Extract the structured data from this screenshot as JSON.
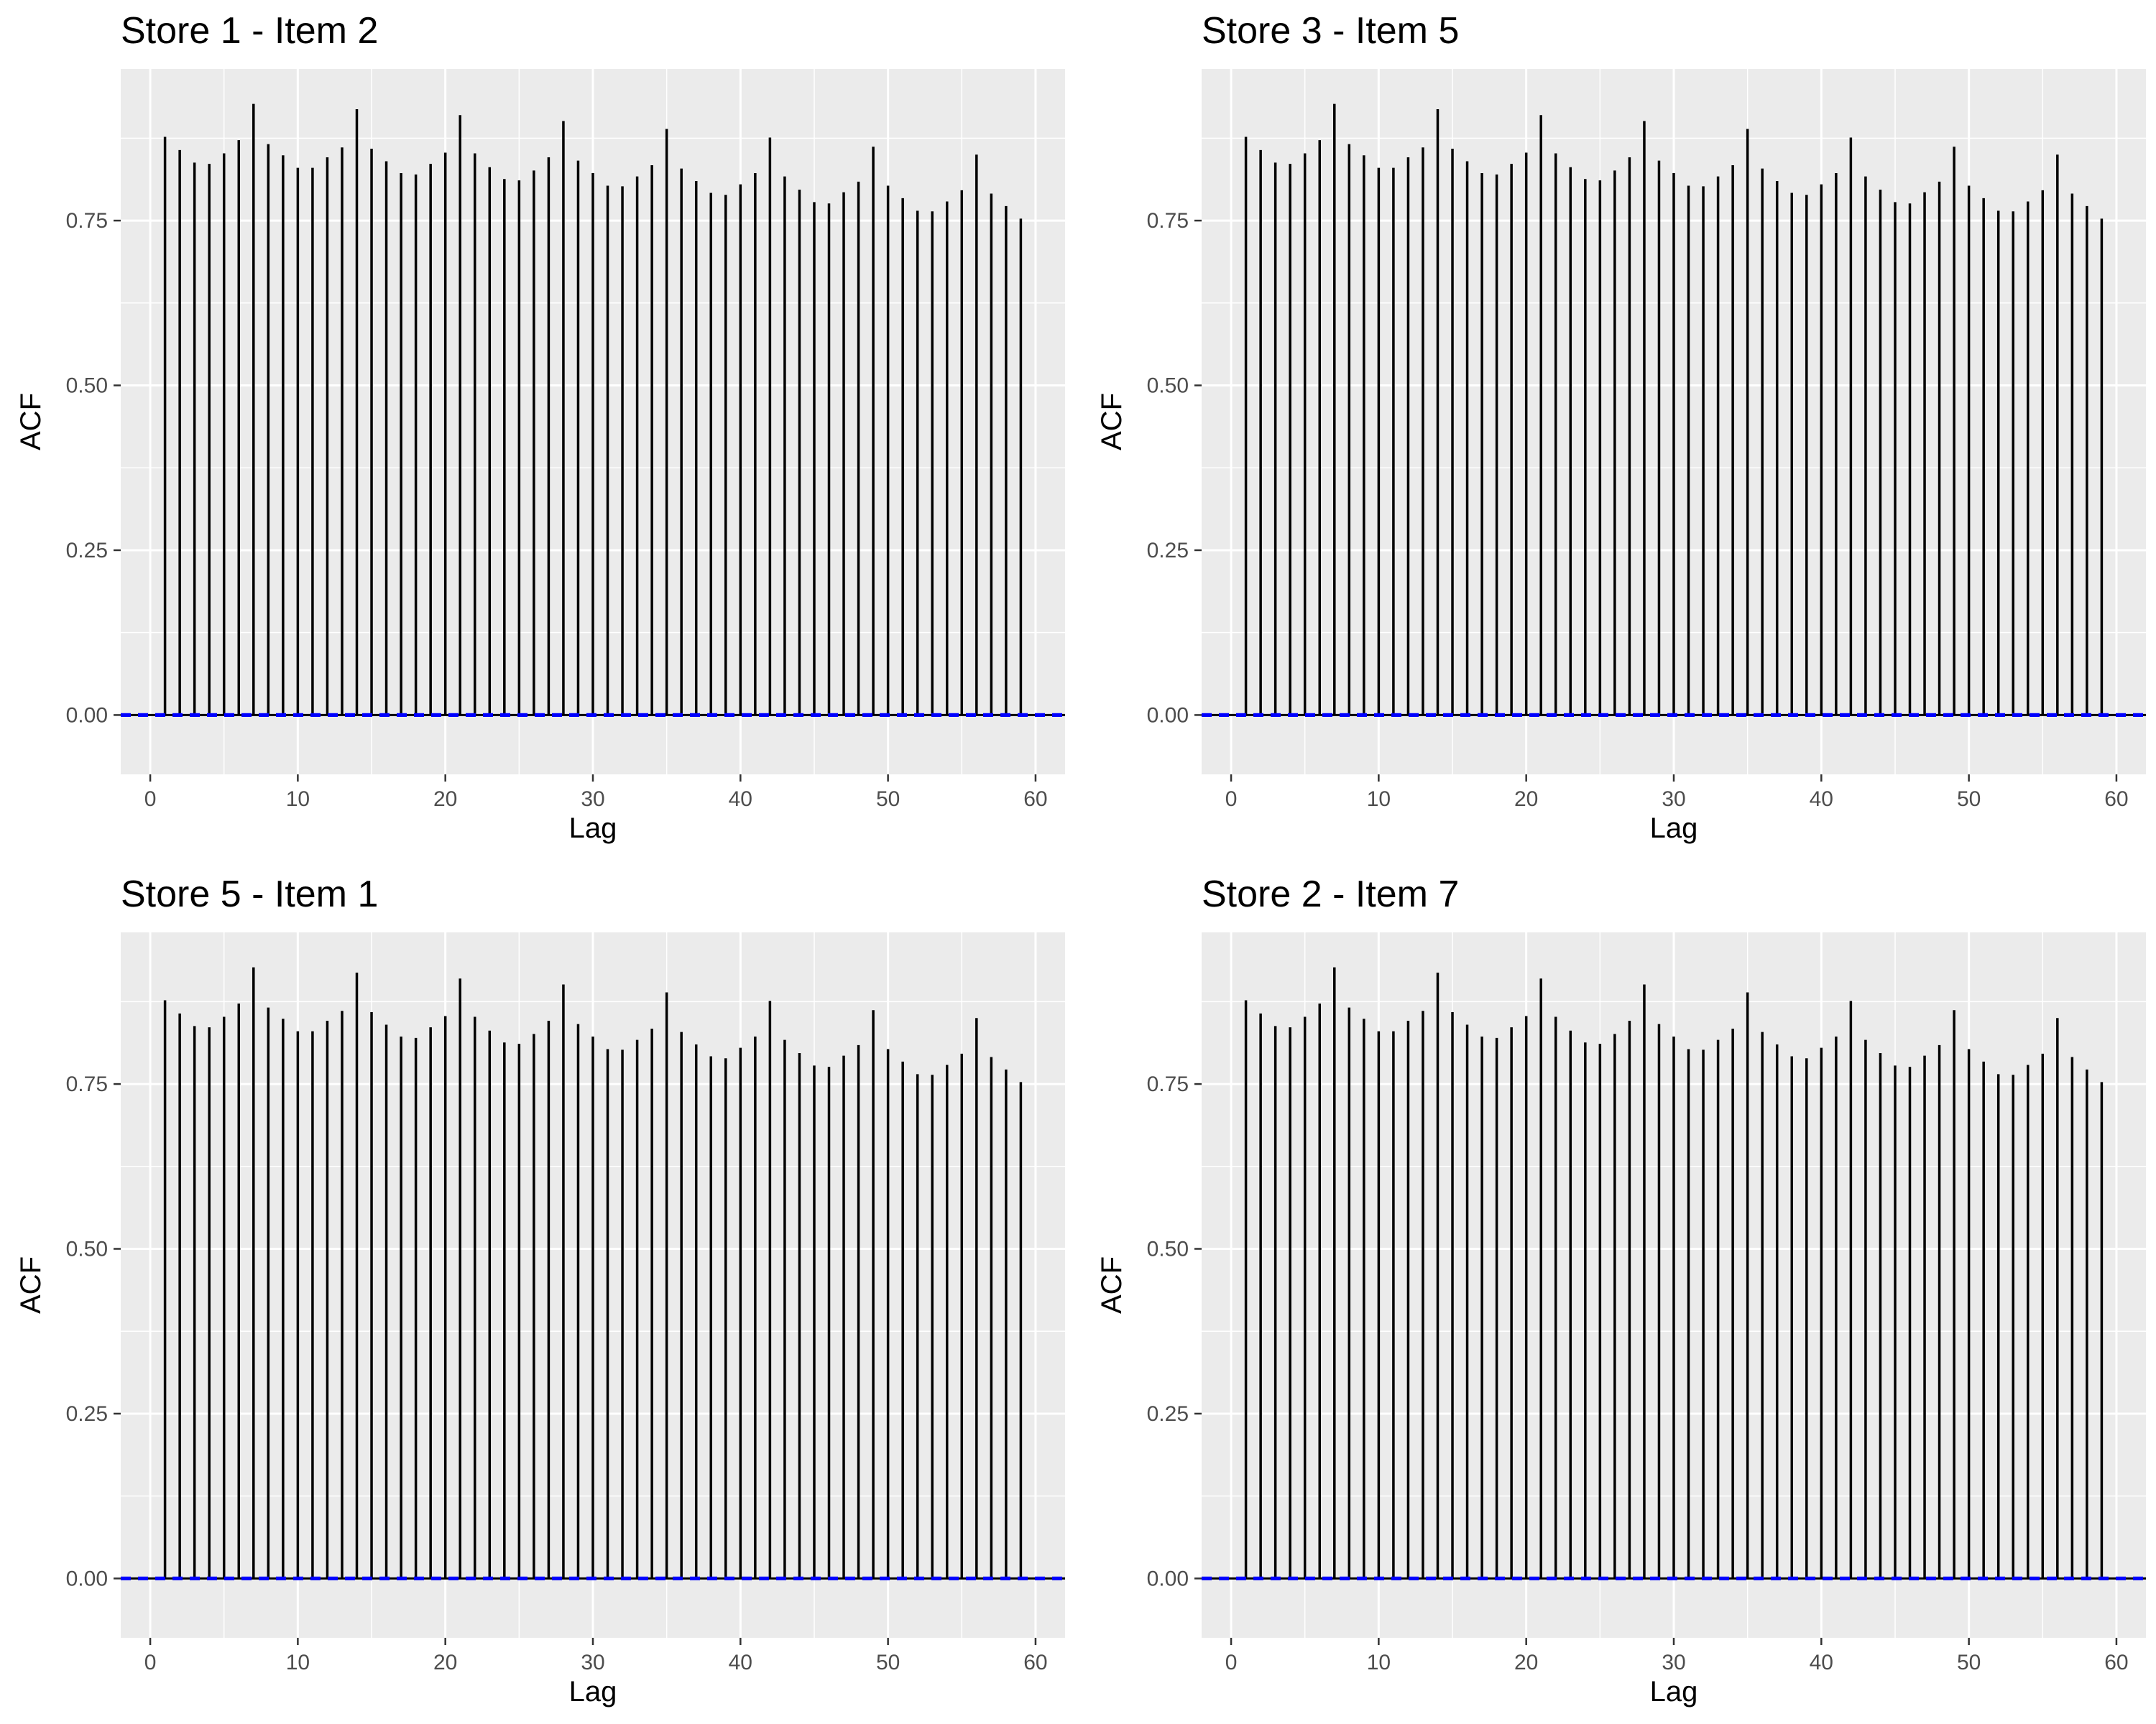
{
  "colors": {
    "panel_bg": "#ebebeb",
    "grid": "#ffffff",
    "bars": "#000000",
    "ci_line": "#0000ff",
    "tick_text": "#4d4d4d"
  },
  "chart_data": [
    {
      "type": "bar",
      "subtype": "acf-stem",
      "title": "Store 1 - Item 2",
      "xlabel": "Lag",
      "ylabel": "ACF",
      "xlim": [
        -2,
        62
      ],
      "ylim": [
        -0.09,
        0.98
      ],
      "xticks": [
        "0",
        "10",
        "20",
        "30",
        "40",
        "50",
        "60"
      ],
      "yticks": [
        "0.00",
        "0.25",
        "0.50",
        "0.75"
      ],
      "grid": true,
      "confidence_band": 0.0,
      "lags": [
        1,
        2,
        3,
        4,
        5,
        6,
        7,
        8,
        9,
        10,
        11,
        12,
        13,
        14,
        15,
        16,
        17,
        18,
        19,
        20,
        21,
        22,
        23,
        24,
        25,
        26,
        27,
        28,
        29,
        30,
        31,
        32,
        33,
        34,
        35,
        36,
        37,
        38,
        39,
        40,
        41,
        42,
        43,
        44,
        45,
        46,
        47,
        48,
        49,
        50,
        51,
        52,
        53,
        54,
        55,
        56,
        57,
        58,
        59
      ],
      "values": [
        0.877,
        0.857,
        0.838,
        0.836,
        0.852,
        0.872,
        0.927,
        0.866,
        0.849,
        0.83,
        0.83,
        0.846,
        0.861,
        0.919,
        0.859,
        0.84,
        0.822,
        0.82,
        0.836,
        0.853,
        0.91,
        0.852,
        0.831,
        0.813,
        0.811,
        0.826,
        0.846,
        0.901,
        0.841,
        0.822,
        0.803,
        0.802,
        0.817,
        0.834,
        0.889,
        0.829,
        0.81,
        0.792,
        0.789,
        0.805,
        0.822,
        0.876,
        0.817,
        0.797,
        0.778,
        0.776,
        0.793,
        0.809,
        0.862,
        0.803,
        0.784,
        0.765,
        0.764,
        0.779,
        0.796,
        0.85,
        0.791,
        0.772,
        0.753
      ]
    },
    {
      "type": "bar",
      "subtype": "acf-stem",
      "title": "Store 3 - Item 5",
      "xlabel": "Lag",
      "ylabel": "ACF",
      "xlim": [
        -2,
        62
      ],
      "ylim": [
        -0.09,
        0.98
      ],
      "xticks": [
        "0",
        "10",
        "20",
        "30",
        "40",
        "50",
        "60"
      ],
      "yticks": [
        "0.00",
        "0.25",
        "0.50",
        "0.75"
      ],
      "grid": true,
      "confidence_band": 0.0,
      "lags": [
        1,
        2,
        3,
        4,
        5,
        6,
        7,
        8,
        9,
        10,
        11,
        12,
        13,
        14,
        15,
        16,
        17,
        18,
        19,
        20,
        21,
        22,
        23,
        24,
        25,
        26,
        27,
        28,
        29,
        30,
        31,
        32,
        33,
        34,
        35,
        36,
        37,
        38,
        39,
        40,
        41,
        42,
        43,
        44,
        45,
        46,
        47,
        48,
        49,
        50,
        51,
        52,
        53,
        54,
        55,
        56,
        57,
        58,
        59
      ],
      "values": [
        0.877,
        0.857,
        0.838,
        0.836,
        0.852,
        0.872,
        0.927,
        0.866,
        0.849,
        0.83,
        0.83,
        0.846,
        0.861,
        0.919,
        0.859,
        0.84,
        0.822,
        0.82,
        0.836,
        0.853,
        0.91,
        0.852,
        0.831,
        0.813,
        0.811,
        0.826,
        0.846,
        0.901,
        0.841,
        0.822,
        0.803,
        0.802,
        0.817,
        0.834,
        0.889,
        0.829,
        0.81,
        0.792,
        0.789,
        0.805,
        0.822,
        0.876,
        0.817,
        0.797,
        0.778,
        0.776,
        0.793,
        0.809,
        0.862,
        0.803,
        0.784,
        0.765,
        0.764,
        0.779,
        0.796,
        0.85,
        0.791,
        0.772,
        0.753
      ]
    },
    {
      "type": "bar",
      "subtype": "acf-stem",
      "title": "Store 5 - Item 1",
      "xlabel": "Lag",
      "ylabel": "ACF",
      "xlim": [
        -2,
        62
      ],
      "ylim": [
        -0.09,
        0.98
      ],
      "xticks": [
        "0",
        "10",
        "20",
        "30",
        "40",
        "50",
        "60"
      ],
      "yticks": [
        "0.00",
        "0.25",
        "0.50",
        "0.75"
      ],
      "grid": true,
      "confidence_band": 0.0,
      "lags": [
        1,
        2,
        3,
        4,
        5,
        6,
        7,
        8,
        9,
        10,
        11,
        12,
        13,
        14,
        15,
        16,
        17,
        18,
        19,
        20,
        21,
        22,
        23,
        24,
        25,
        26,
        27,
        28,
        29,
        30,
        31,
        32,
        33,
        34,
        35,
        36,
        37,
        38,
        39,
        40,
        41,
        42,
        43,
        44,
        45,
        46,
        47,
        48,
        49,
        50,
        51,
        52,
        53,
        54,
        55,
        56,
        57,
        58,
        59
      ],
      "values": [
        0.877,
        0.857,
        0.838,
        0.836,
        0.852,
        0.872,
        0.927,
        0.866,
        0.849,
        0.83,
        0.83,
        0.846,
        0.861,
        0.919,
        0.859,
        0.84,
        0.822,
        0.82,
        0.836,
        0.853,
        0.91,
        0.852,
        0.831,
        0.813,
        0.811,
        0.826,
        0.846,
        0.901,
        0.841,
        0.822,
        0.803,
        0.802,
        0.817,
        0.834,
        0.889,
        0.829,
        0.81,
        0.792,
        0.789,
        0.805,
        0.822,
        0.876,
        0.817,
        0.797,
        0.778,
        0.776,
        0.793,
        0.809,
        0.862,
        0.803,
        0.784,
        0.765,
        0.764,
        0.779,
        0.796,
        0.85,
        0.791,
        0.772,
        0.753
      ]
    },
    {
      "type": "bar",
      "subtype": "acf-stem",
      "title": "Store 2 - Item 7",
      "xlabel": "Lag",
      "ylabel": "ACF",
      "xlim": [
        -2,
        62
      ],
      "ylim": [
        -0.09,
        0.98
      ],
      "xticks": [
        "0",
        "10",
        "20",
        "30",
        "40",
        "50",
        "60"
      ],
      "yticks": [
        "0.00",
        "0.25",
        "0.50",
        "0.75"
      ],
      "grid": true,
      "confidence_band": 0.0,
      "lags": [
        1,
        2,
        3,
        4,
        5,
        6,
        7,
        8,
        9,
        10,
        11,
        12,
        13,
        14,
        15,
        16,
        17,
        18,
        19,
        20,
        21,
        22,
        23,
        24,
        25,
        26,
        27,
        28,
        29,
        30,
        31,
        32,
        33,
        34,
        35,
        36,
        37,
        38,
        39,
        40,
        41,
        42,
        43,
        44,
        45,
        46,
        47,
        48,
        49,
        50,
        51,
        52,
        53,
        54,
        55,
        56,
        57,
        58,
        59
      ],
      "values": [
        0.877,
        0.857,
        0.838,
        0.836,
        0.852,
        0.872,
        0.927,
        0.866,
        0.849,
        0.83,
        0.83,
        0.846,
        0.861,
        0.919,
        0.859,
        0.84,
        0.822,
        0.82,
        0.836,
        0.853,
        0.91,
        0.852,
        0.831,
        0.813,
        0.811,
        0.826,
        0.846,
        0.901,
        0.841,
        0.822,
        0.803,
        0.802,
        0.817,
        0.834,
        0.889,
        0.829,
        0.81,
        0.792,
        0.789,
        0.805,
        0.822,
        0.876,
        0.817,
        0.797,
        0.778,
        0.776,
        0.793,
        0.809,
        0.862,
        0.803,
        0.784,
        0.765,
        0.764,
        0.779,
        0.796,
        0.85,
        0.791,
        0.772,
        0.753
      ]
    }
  ]
}
